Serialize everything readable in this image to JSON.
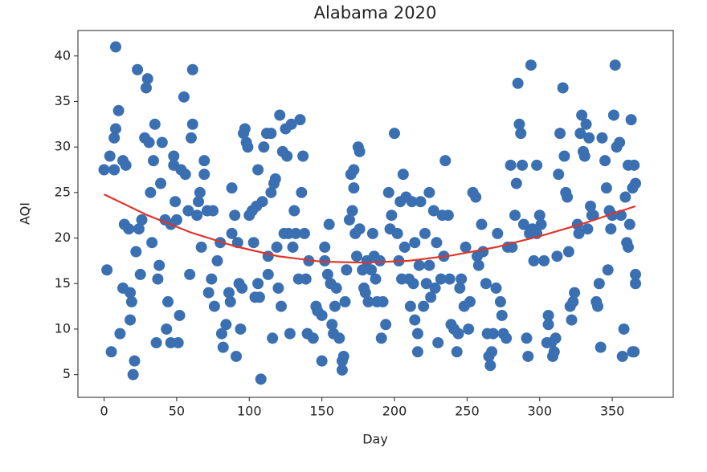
{
  "chart_data": {
    "type": "scatter",
    "title": "Alabama 2020",
    "x_label": "Day",
    "y_label": "AQI",
    "xlim": [
      -18,
      392
    ],
    "ylim": [
      2.5,
      42.8
    ],
    "xticks": [
      0,
      50,
      100,
      150,
      200,
      250,
      300,
      350
    ],
    "yticks": [
      5,
      10,
      15,
      20,
      25,
      30,
      35,
      40
    ],
    "grid": false,
    "series": [
      {
        "color": "#3a70b2",
        "mode": "markers",
        "x": [
          0,
          2,
          4,
          5,
          7,
          7,
          8,
          8,
          10,
          11,
          13,
          13,
          14,
          15,
          17,
          18,
          18,
          19,
          20,
          21,
          22,
          23,
          24,
          25,
          26,
          28,
          29,
          30,
          31,
          32,
          33,
          34,
          35,
          36,
          37,
          38,
          39,
          40,
          42,
          43,
          44,
          46,
          46,
          48,
          48,
          49,
          50,
          51,
          52,
          53,
          55,
          56,
          58,
          59,
          60,
          61,
          61,
          64,
          65,
          66,
          67,
          69,
          69,
          71,
          72,
          74,
          75,
          76,
          78,
          80,
          81,
          82,
          84,
          86,
          87,
          88,
          88,
          90,
          91,
          92,
          93,
          94,
          95,
          96,
          97,
          98,
          99,
          100,
          102,
          103,
          104,
          105,
          106,
          106,
          107,
          108,
          109,
          110,
          112,
          113,
          113,
          115,
          115,
          116,
          117,
          118,
          119,
          120,
          121,
          122,
          123,
          124,
          125,
          126,
          127,
          128,
          129,
          130,
          131,
          132,
          134,
          135,
          136,
          137,
          138,
          139,
          140,
          141,
          144,
          146,
          147,
          150,
          150,
          152,
          152,
          154,
          155,
          156,
          157,
          158,
          159,
          160,
          162,
          164,
          164,
          165,
          166,
          167,
          169,
          170,
          171,
          172,
          172,
          173,
          174,
          175,
          176,
          176,
          178,
          179,
          180,
          181,
          182,
          184,
          185,
          186,
          187,
          188,
          190,
          191,
          192,
          194,
          196,
          197,
          198,
          200,
          202,
          203,
          204,
          205,
          206,
          207,
          208,
          210,
          211,
          212,
          213,
          214,
          214,
          216,
          216,
          217,
          218,
          220,
          221,
          222,
          224,
          224,
          225,
          227,
          228,
          229,
          230,
          232,
          233,
          234,
          235,
          237,
          238,
          239,
          241,
          243,
          244,
          245,
          246,
          248,
          249,
          251,
          252,
          254,
          256,
          257,
          258,
          260,
          261,
          263,
          264,
          265,
          266,
          267,
          268,
          270,
          271,
          273,
          274,
          275,
          277,
          278,
          280,
          281,
          283,
          284,
          285,
          286,
          287,
          288,
          289,
          291,
          292,
          293,
          294,
          295,
          296,
          298,
          298,
          300,
          301,
          303,
          305,
          306,
          306,
          308,
          309,
          310,
          311,
          312,
          313,
          314,
          316,
          317,
          318,
          319,
          320,
          321,
          322,
          323,
          324,
          326,
          327,
          328,
          329,
          330,
          331,
          332,
          333,
          334,
          335,
          336,
          337,
          339,
          340,
          341,
          342,
          343,
          345,
          346,
          347,
          348,
          349,
          350,
          351,
          352,
          353,
          355,
          356,
          357,
          358,
          359,
          360,
          361,
          361,
          362,
          363,
          364,
          364,
          365,
          365,
          366,
          366,
          366
        ],
        "values": [
          27.5,
          16.5,
          29,
          7.5,
          27.5,
          31,
          32,
          41,
          34,
          9.5,
          14.5,
          28.5,
          21.5,
          28,
          21,
          14,
          11,
          13,
          5,
          6.5,
          18.5,
          38.5,
          21,
          16,
          22,
          31,
          36.5,
          37.5,
          30.5,
          25,
          19.5,
          28.5,
          32.5,
          8.5,
          15.5,
          17,
          26,
          30.5,
          22,
          10,
          13,
          21.5,
          8.5,
          29,
          28,
          24,
          22,
          8.5,
          11.5,
          27.5,
          35.5,
          27,
          23,
          16,
          31,
          38.5,
          32.5,
          22.5,
          24,
          25,
          19,
          27,
          28.5,
          23,
          14,
          15.5,
          23,
          12.5,
          17.5,
          19.5,
          9.5,
          8,
          10.5,
          14,
          13,
          20.5,
          25.5,
          22.5,
          7,
          19.5,
          15,
          10,
          14.5,
          31.5,
          32,
          30.5,
          30,
          22.5,
          23,
          19.5,
          13.5,
          23.5,
          27.5,
          15,
          13.5,
          4.5,
          24,
          30,
          31.5,
          18,
          16,
          25,
          31.5,
          9,
          26,
          26.5,
          19,
          14.5,
          33.5,
          12.5,
          29.5,
          20.5,
          32,
          29,
          20.5,
          9.5,
          32.5,
          19,
          23,
          20.5,
          15.5,
          33,
          25,
          29,
          20.5,
          15.5,
          9.5,
          17.5,
          9,
          12.5,
          12,
          6.5,
          11.5,
          19,
          17.5,
          16,
          21.5,
          15,
          10.5,
          9.5,
          12.5,
          14.5,
          9,
          6.5,
          5.5,
          7,
          13,
          16.5,
          22,
          27,
          23,
          27.5,
          25.5,
          20.5,
          18,
          30,
          29.5,
          21,
          16.5,
          14.5,
          14,
          17.5,
          13,
          16.5,
          20.5,
          18,
          15.5,
          13,
          17.5,
          9,
          13,
          10.5,
          25,
          21,
          22.5,
          31.5,
          20.5,
          17.5,
          24,
          15.5,
          27,
          19,
          24.5,
          15.5,
          12.5,
          24,
          15,
          19.5,
          11,
          7.5,
          9.5,
          17,
          24,
          12.5,
          20.5,
          15,
          25,
          17,
          13.5,
          23,
          14.5,
          19.5,
          8.5,
          15.5,
          22.5,
          18,
          28.5,
          22.5,
          15.5,
          10.5,
          10,
          7.5,
          9.5,
          14.5,
          15.5,
          12.5,
          19,
          10,
          13,
          25,
          24.5,
          18,
          17,
          21.5,
          18.5,
          15,
          9.5,
          7,
          6,
          7.5,
          9.5,
          14.5,
          20.5,
          13,
          11.5,
          9.5,
          9,
          19,
          28,
          19,
          22.5,
          26,
          37,
          32.5,
          31.5,
          28,
          21.5,
          9,
          7,
          20.5,
          39,
          21,
          17.5,
          20.5,
          28,
          22.5,
          21.5,
          17.5,
          8.5,
          11.5,
          10.5,
          8.5,
          7,
          7.5,
          9,
          18,
          27,
          31.5,
          36.5,
          29,
          25,
          24.5,
          18.5,
          12.5,
          11,
          13,
          14,
          21.5,
          20.5,
          31.5,
          33.5,
          29.5,
          29,
          32.5,
          21,
          31,
          23.5,
          22.5,
          22.5,
          13,
          12.5,
          15,
          8,
          31,
          28.5,
          25.5,
          16.5,
          23,
          21,
          22.5,
          33.5,
          39,
          30,
          30.5,
          22.5,
          7,
          10,
          24.5,
          19.5,
          19,
          28,
          21.5,
          33,
          25.5,
          7.5,
          7.5,
          28,
          26,
          15,
          16
        ]
      },
      {
        "color": "#e0352b",
        "mode": "line",
        "x": [
          0,
          30,
          60,
          90,
          120,
          150,
          180,
          210,
          240,
          270,
          300,
          330,
          366
        ],
        "values": [
          24.8,
          22.5,
          20.6,
          19.1,
          18.0,
          17.4,
          17.3,
          17.5,
          18.1,
          19.0,
          20.2,
          21.6,
          23.5
        ]
      }
    ]
  }
}
